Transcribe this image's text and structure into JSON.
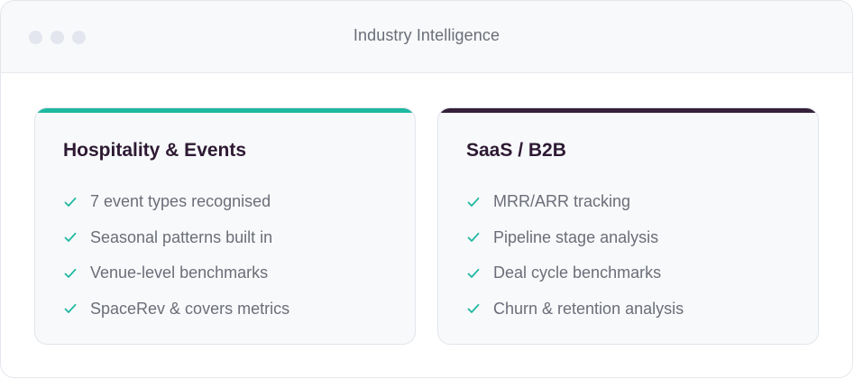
{
  "window": {
    "title": "Industry Intelligence"
  },
  "colors": {
    "teal_accent": "#1fb8a0",
    "plum_accent": "#36203a",
    "check": "#1fb8a0"
  },
  "cards": [
    {
      "title": "Hospitality & Events",
      "accent": "#1fb8a0",
      "items": [
        "7 event types recognised",
        "Seasonal patterns built in",
        "Venue-level benchmarks",
        "SpaceRev & covers metrics"
      ]
    },
    {
      "title": "SaaS / B2B",
      "accent": "#36203a",
      "items": [
        "MRR/ARR tracking",
        "Pipeline stage analysis",
        "Deal cycle benchmarks",
        "Churn & retention analysis"
      ]
    }
  ]
}
